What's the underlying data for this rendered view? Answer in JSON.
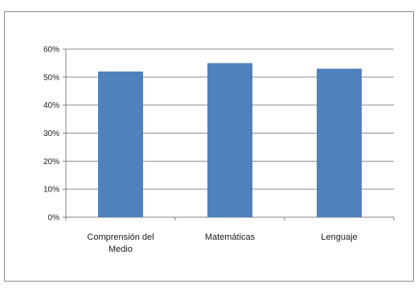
{
  "chart_data": {
    "type": "bar",
    "categories": [
      "Comprensión del Medio",
      "Matemáticas",
      "Lenguaje"
    ],
    "category_lines": [
      [
        "Comprensión del",
        "Medio"
      ],
      [
        "Matemáticas"
      ],
      [
        "Lenguaje"
      ]
    ],
    "values": [
      0.52,
      0.55,
      0.53
    ],
    "y_ticks": [
      "0%",
      "10%",
      "20%",
      "30%",
      "40%",
      "50%",
      "60%"
    ],
    "ylim": [
      0,
      0.6
    ],
    "grid": true,
    "legend": "none",
    "title": "",
    "xlabel": "",
    "ylabel": ""
  },
  "colors": {
    "bar": "#4f81bd",
    "grid": "#8c8c8c",
    "axis": "#7f7f7f"
  }
}
